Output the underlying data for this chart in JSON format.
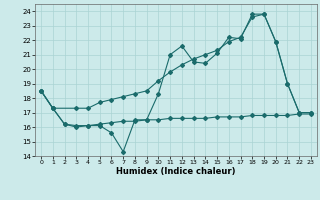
{
  "xlabel": "Humidex (Indice chaleur)",
  "xlim": [
    -0.5,
    23.5
  ],
  "ylim": [
    14,
    24.5
  ],
  "yticks": [
    14,
    15,
    16,
    17,
    18,
    19,
    20,
    21,
    22,
    23,
    24
  ],
  "xticks": [
    0,
    1,
    2,
    3,
    4,
    5,
    6,
    7,
    8,
    9,
    10,
    11,
    12,
    13,
    14,
    15,
    16,
    17,
    18,
    19,
    20,
    21,
    22,
    23
  ],
  "bg_color": "#cceaea",
  "grid_color": "#aad4d4",
  "line_color": "#1a6b6b",
  "series1_x": [
    0,
    1,
    2,
    3,
    4,
    5,
    6,
    7,
    8,
    9,
    10,
    11,
    12,
    13,
    14,
    15,
    16,
    17,
    18,
    19,
    20,
    21,
    22,
    23
  ],
  "series1_y": [
    18.5,
    17.3,
    16.2,
    16.0,
    16.1,
    16.1,
    15.6,
    14.3,
    16.5,
    16.5,
    18.3,
    21.0,
    21.6,
    20.5,
    20.4,
    21.1,
    22.2,
    22.1,
    23.8,
    23.8,
    21.9,
    19.0,
    17.0,
    17.0
  ],
  "series2_x": [
    0,
    1,
    3,
    4,
    5,
    6,
    7,
    8,
    9,
    10,
    11,
    12,
    13,
    14,
    15,
    16,
    17,
    18,
    19,
    20,
    21,
    22,
    23
  ],
  "series2_y": [
    18.5,
    17.3,
    17.3,
    17.3,
    17.7,
    17.9,
    18.1,
    18.3,
    18.5,
    19.2,
    19.8,
    20.3,
    20.7,
    21.0,
    21.3,
    21.9,
    22.2,
    23.6,
    23.8,
    21.9,
    19.0,
    17.0,
    17.0
  ],
  "series3_x": [
    0,
    1,
    2,
    3,
    4,
    5,
    6,
    7,
    8,
    9,
    10,
    11,
    12,
    13,
    14,
    15,
    16,
    17,
    18,
    19,
    20,
    21,
    22,
    23
  ],
  "series3_y": [
    18.5,
    17.3,
    16.2,
    16.1,
    16.1,
    16.2,
    16.3,
    16.4,
    16.4,
    16.5,
    16.5,
    16.6,
    16.6,
    16.6,
    16.6,
    16.7,
    16.7,
    16.7,
    16.8,
    16.8,
    16.8,
    16.8,
    16.9,
    16.9
  ]
}
